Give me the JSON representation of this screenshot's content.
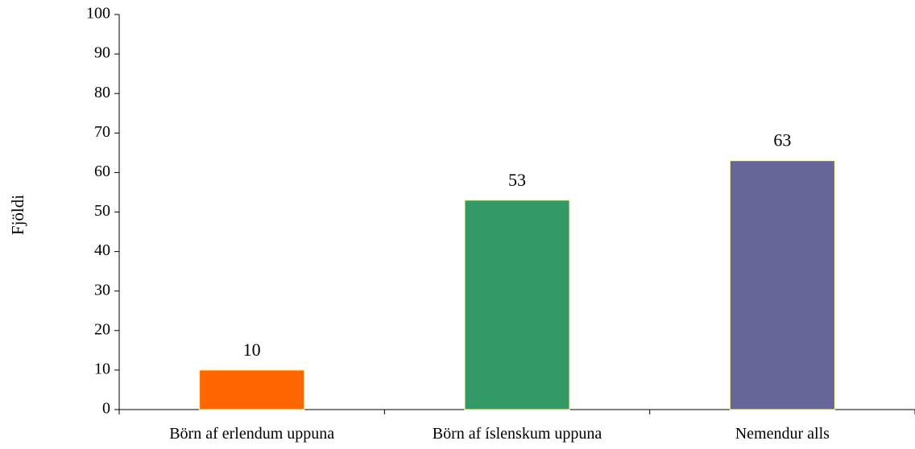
{
  "chart_data": {
    "type": "bar",
    "title": "",
    "xlabel": "",
    "ylabel": "Fjöldi",
    "ylim": [
      0,
      100
    ],
    "yticks": [
      0,
      10,
      20,
      30,
      40,
      50,
      60,
      70,
      80,
      90,
      100
    ],
    "grid": false,
    "legend": "none",
    "categories": [
      "Börn af erlendum uppuna",
      "Börn af íslenskum uppuna",
      "Nemendur alls"
    ],
    "values": [
      10,
      53,
      63
    ],
    "colors": [
      "#FF6600",
      "#339966",
      "#666699"
    ],
    "bar_edge_color": "#FFFF99",
    "data_labels": [
      "10",
      "53",
      "63"
    ]
  }
}
